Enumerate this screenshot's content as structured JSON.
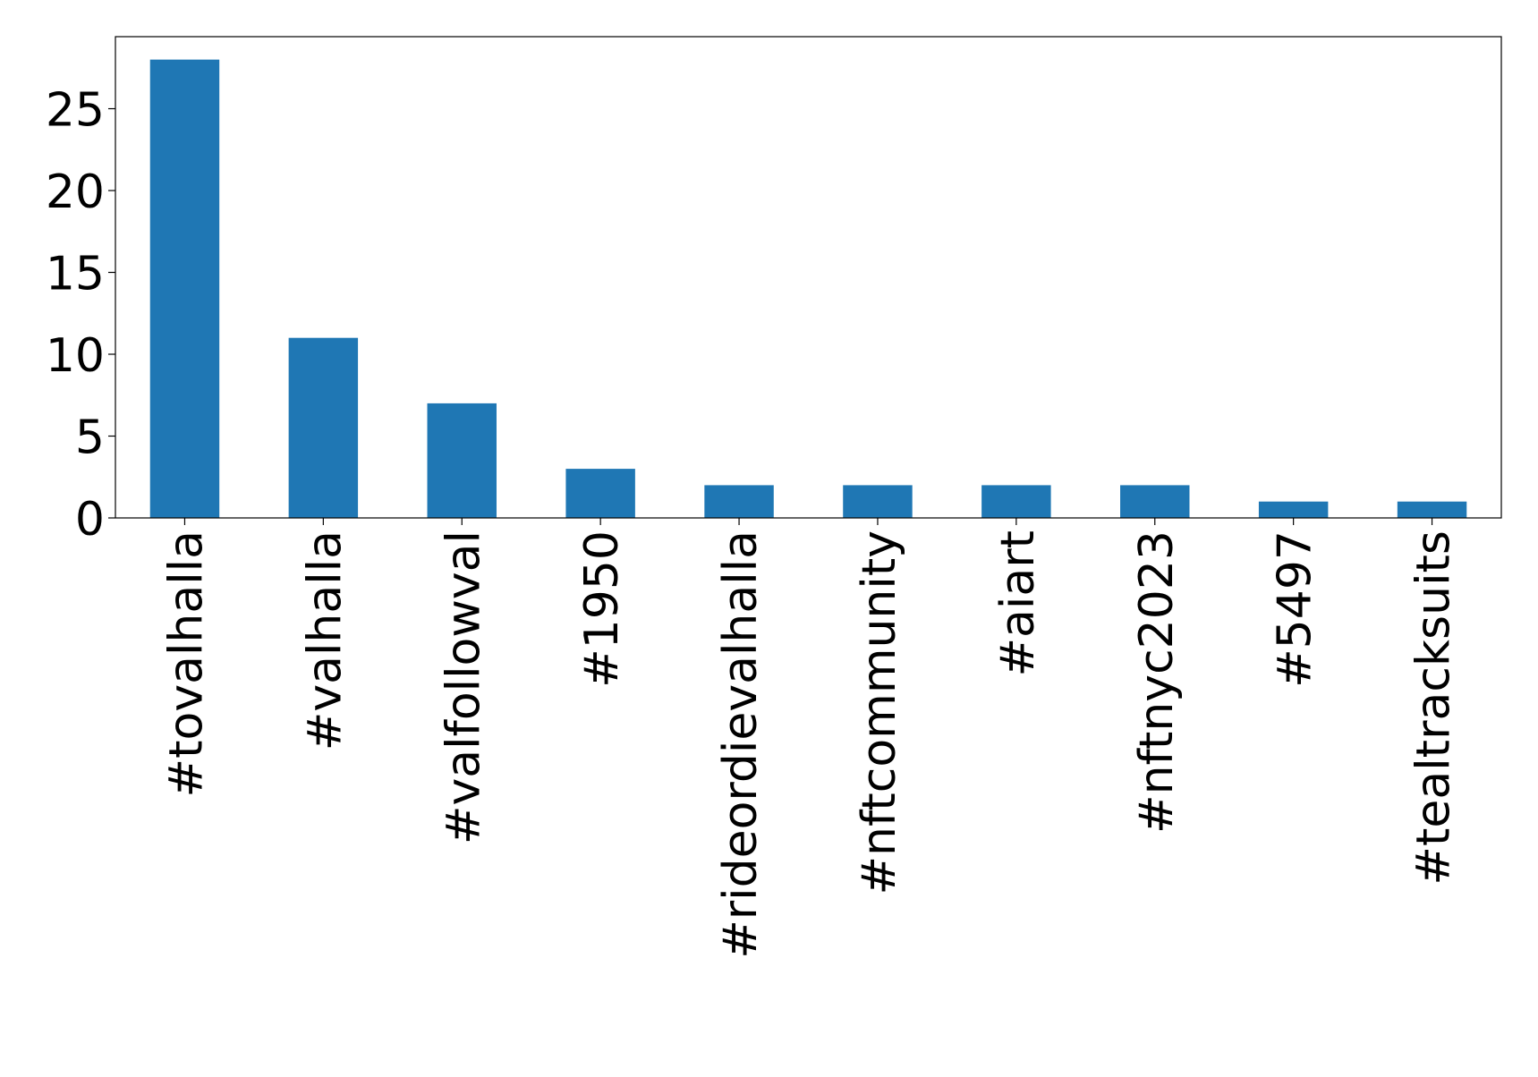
{
  "chart_data": {
    "type": "bar",
    "categories": [
      "#tovalhalla",
      "#valhalla",
      "#valfollowval",
      "#1950",
      "#rideordievalhalla",
      "#nftcommunity",
      "#aiart",
      "#nftnyc2023",
      "#5497",
      "#tealtracksuits"
    ],
    "values": [
      28,
      11,
      7,
      3,
      2,
      2,
      2,
      2,
      1,
      1
    ],
    "color": "#1f77b4",
    "ylim": [
      0,
      29.4
    ],
    "yticks": [
      0,
      5,
      10,
      15,
      20,
      25
    ],
    "grid": false
  }
}
